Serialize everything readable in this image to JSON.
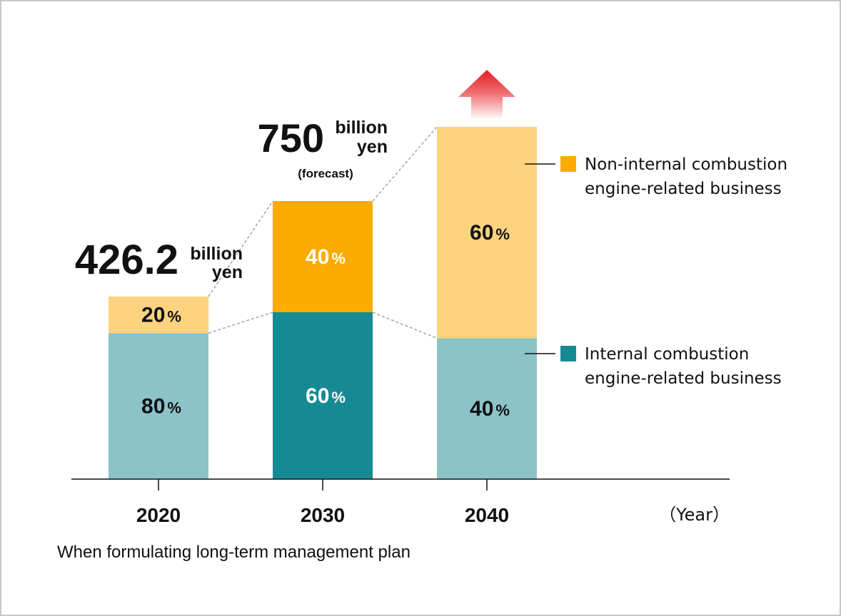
{
  "chart_data": {
    "type": "bar",
    "stacked": true,
    "categories": [
      "2020",
      "2030",
      "2040"
    ],
    "x_axis_unit_label": "（Year）",
    "series": [
      {
        "name_lines": [
          "Internal combustion",
          "engine-related business"
        ],
        "percent_values": [
          80,
          60,
          40
        ],
        "percent_labels": [
          "80",
          "60",
          "40"
        ],
        "colors": [
          "#8cc3c9",
          "#168a94",
          "#8cc3c9"
        ],
        "label_colors": [
          "#111111",
          "#ffffff",
          "#111111"
        ]
      },
      {
        "name_lines": [
          "Non-internal combustion",
          "engine-related business"
        ],
        "percent_values": [
          20,
          40,
          60
        ],
        "percent_labels": [
          "20",
          "40",
          "60"
        ],
        "colors": [
          "#fdd37f",
          "#fcab00",
          "#fdd37f"
        ],
        "label_colors": [
          "#111111",
          "#ffffff",
          "#111111"
        ]
      }
    ],
    "percent_sign": "%",
    "totals": [
      426.2,
      750,
      null
    ],
    "total_labels": [
      {
        "value": "426.2",
        "unit_line1": "billion",
        "unit_line2": "yen",
        "note": ""
      },
      {
        "value": "750",
        "unit_line1": "billion",
        "unit_line2": "yen",
        "note": "(forecast)"
      }
    ],
    "growth_arrow": {
      "category": "2040",
      "meaning": "increase",
      "color": "#e21f26"
    },
    "legend_colors": {
      "internal": "#168a94",
      "non_internal": "#fcab00"
    }
  },
  "footnote": "When formulating long-term management plan"
}
